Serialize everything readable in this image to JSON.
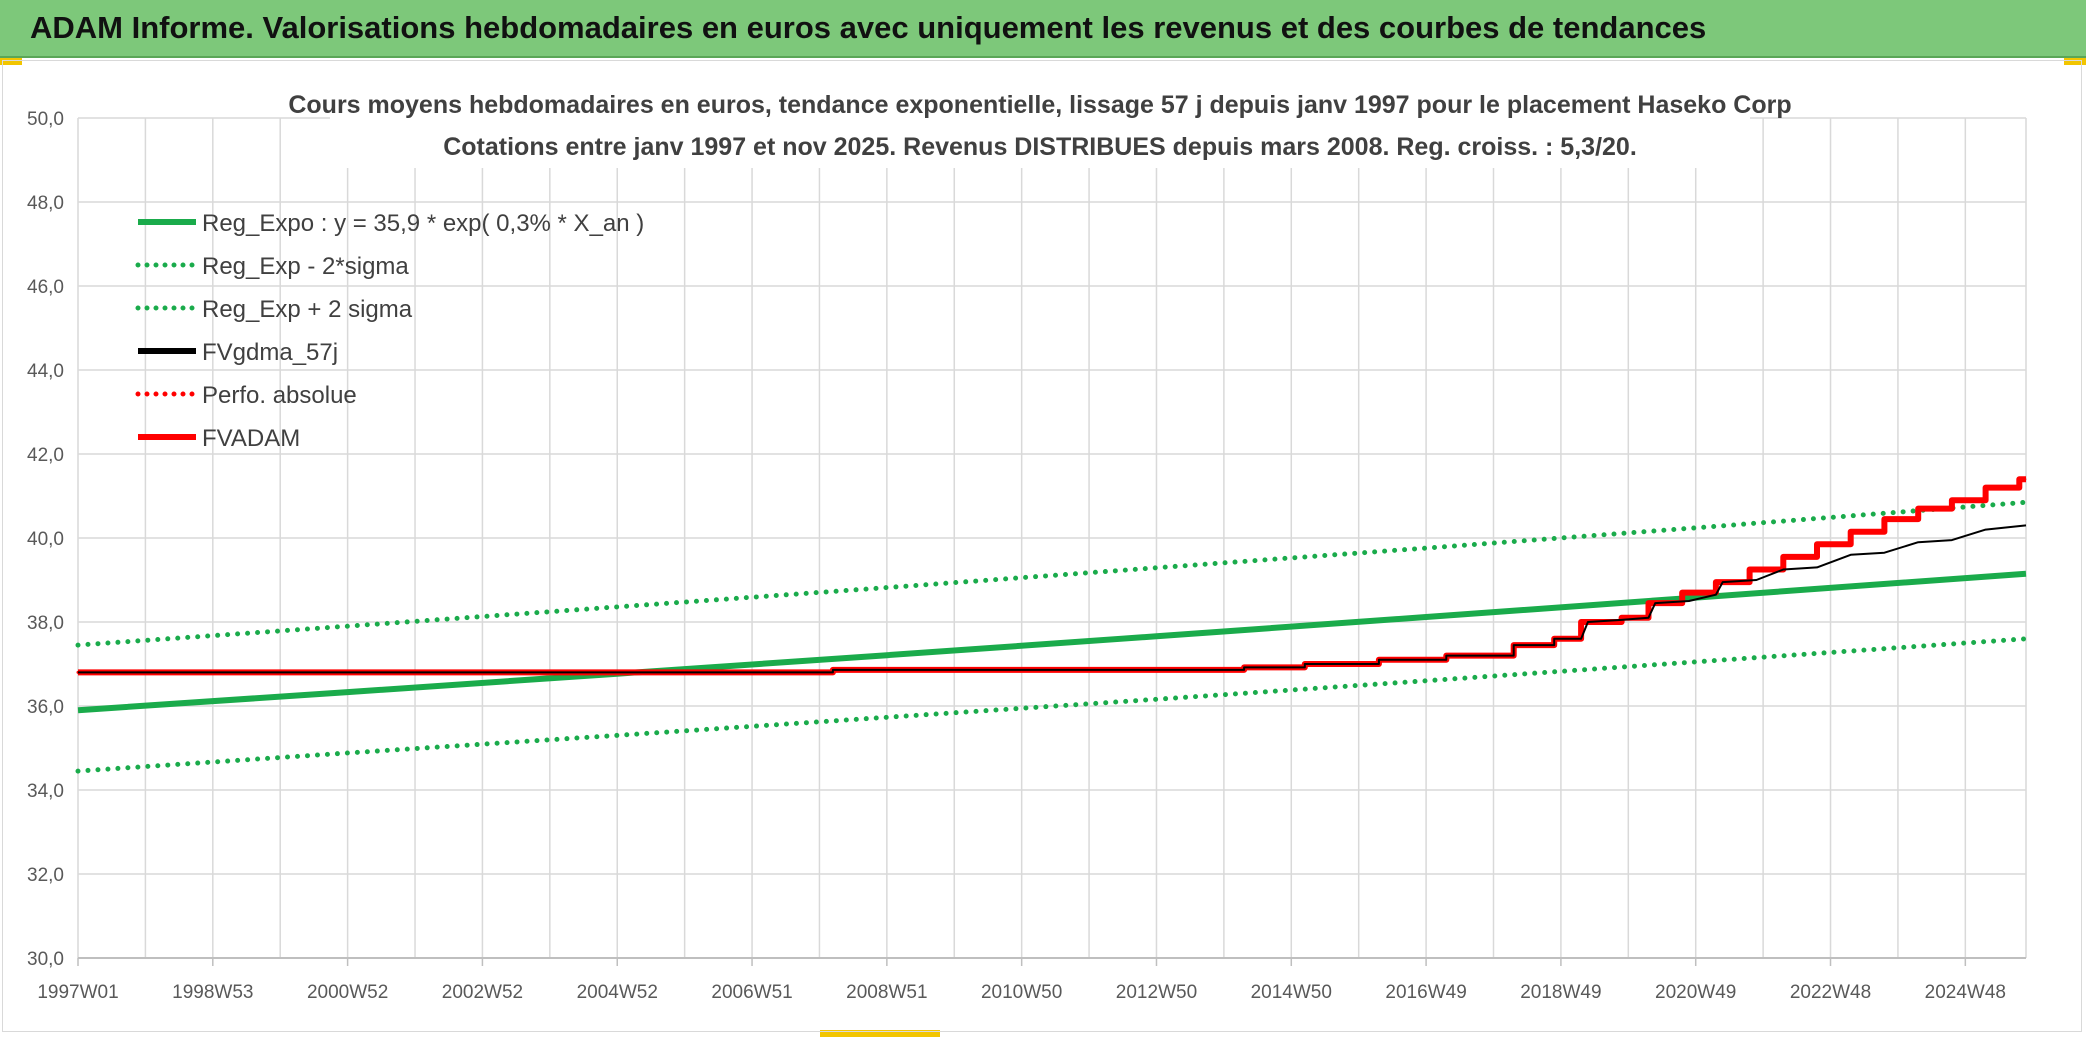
{
  "banner": {
    "title": "ADAM Informe. Valorisations hebdomadaires en euros avec uniquement les revenus et des courbes de tendances"
  },
  "colors": {
    "banner_bg": "#7dc87a",
    "trend_green": "#1aab4b",
    "fvadam_red": "#ff0000",
    "fvgdma_black": "#000000",
    "grid": "#d9d9d9"
  },
  "chart_data": {
    "type": "line",
    "title_line1": "Cours moyens hebdomadaires en euros, tendance exponentielle, lissage 57 j depuis janv 1997 pour le placement Haseko Corp",
    "title_line2": "Cotations entre janv 1997 et nov 2025. Revenus DISTRIBUES depuis mars 2008. Reg. croiss. : 5,3/20.",
    "x_range": [
      1997.0,
      2025.9
    ],
    "x_tick_labels": [
      "1997W01",
      "1998W53",
      "2000W52",
      "2002W52",
      "2004W52",
      "2006W51",
      "2008W51",
      "2010W50",
      "2012W50",
      "2014W50",
      "2016W49",
      "2018W49",
      "2020W49",
      "2022W48",
      "2024W48"
    ],
    "x_tick_years": [
      1997.0,
      1999.0,
      2001.0,
      2003.0,
      2005.0,
      2007.0,
      2009.0,
      2011.0,
      2013.0,
      2015.0,
      2017.0,
      2019.0,
      2021.0,
      2023.0,
      2025.0
    ],
    "ylim": [
      30,
      50
    ],
    "y_ticks": [
      "30,0",
      "32,0",
      "34,0",
      "36,0",
      "38,0",
      "40,0",
      "42,0",
      "44,0",
      "46,0",
      "48,0",
      "50,0"
    ],
    "grid": true,
    "legend_position": "top-left",
    "series": [
      {
        "name": "Reg_Expo : y = 35,9 * exp( 0,3% *  X_an )",
        "color": "#1aab4b",
        "style": "solid",
        "points": [
          [
            1997.0,
            35.9
          ],
          [
            2001.0,
            36.33
          ],
          [
            2005.0,
            36.77
          ],
          [
            2009.0,
            37.21
          ],
          [
            2013.0,
            37.66
          ],
          [
            2017.0,
            38.12
          ],
          [
            2021.0,
            38.58
          ],
          [
            2025.9,
            39.15
          ]
        ]
      },
      {
        "name": "Reg_Exp - 2*sigma",
        "color": "#1aab4b",
        "style": "dotted",
        "points": [
          [
            1997.0,
            34.45
          ],
          [
            2001.0,
            34.88
          ],
          [
            2005.0,
            35.3
          ],
          [
            2009.0,
            35.73
          ],
          [
            2013.0,
            36.16
          ],
          [
            2017.0,
            36.6
          ],
          [
            2021.0,
            37.05
          ],
          [
            2025.9,
            37.6
          ]
        ]
      },
      {
        "name": "Reg_Exp + 2 sigma",
        "color": "#1aab4b",
        "style": "dotted",
        "points": [
          [
            1997.0,
            37.45
          ],
          [
            2001.0,
            37.9
          ],
          [
            2005.0,
            38.36
          ],
          [
            2009.0,
            38.82
          ],
          [
            2013.0,
            39.29
          ],
          [
            2017.0,
            39.76
          ],
          [
            2021.0,
            40.24
          ],
          [
            2025.9,
            40.85
          ]
        ]
      },
      {
        "name": "FVgdma_57j",
        "color": "#000000",
        "style": "solid",
        "points": [
          [
            1997.0,
            36.8
          ],
          [
            2008.2,
            36.8
          ],
          [
            2008.2,
            36.86
          ],
          [
            2014.3,
            36.86
          ],
          [
            2014.3,
            36.92
          ],
          [
            2015.2,
            36.92
          ],
          [
            2015.2,
            37.0
          ],
          [
            2016.3,
            37.0
          ],
          [
            2016.3,
            37.1
          ],
          [
            2017.3,
            37.1
          ],
          [
            2017.3,
            37.2
          ],
          [
            2018.3,
            37.2
          ],
          [
            2018.3,
            37.45
          ],
          [
            2018.9,
            37.45
          ],
          [
            2018.9,
            37.6
          ],
          [
            2019.3,
            37.6
          ],
          [
            2019.4,
            38.0
          ],
          [
            2019.9,
            38.05
          ],
          [
            2020.3,
            38.1
          ],
          [
            2020.4,
            38.45
          ],
          [
            2020.9,
            38.5
          ],
          [
            2021.3,
            38.65
          ],
          [
            2021.4,
            38.95
          ],
          [
            2021.9,
            39.0
          ],
          [
            2022.3,
            39.25
          ],
          [
            2022.8,
            39.3
          ],
          [
            2023.3,
            39.6
          ],
          [
            2023.8,
            39.65
          ],
          [
            2024.3,
            39.9
          ],
          [
            2024.8,
            39.95
          ],
          [
            2025.3,
            40.2
          ],
          [
            2025.9,
            40.3
          ]
        ]
      },
      {
        "name": "Perfo. absolue",
        "color": "#ff0000",
        "style": "dotted",
        "points": [
          [
            1997.0,
            36.8
          ],
          [
            2008.2,
            36.8
          ],
          [
            2008.2,
            36.86
          ],
          [
            2014.3,
            36.86
          ],
          [
            2014.3,
            36.92
          ],
          [
            2015.2,
            36.92
          ],
          [
            2015.2,
            37.0
          ],
          [
            2016.3,
            37.0
          ],
          [
            2016.3,
            37.1
          ],
          [
            2017.3,
            37.1
          ],
          [
            2017.3,
            37.2
          ],
          [
            2018.3,
            37.2
          ],
          [
            2018.3,
            37.45
          ],
          [
            2018.9,
            37.45
          ],
          [
            2018.9,
            37.6
          ],
          [
            2019.3,
            37.6
          ],
          [
            2019.3,
            38.0
          ],
          [
            2019.9,
            38.0
          ],
          [
            2019.9,
            38.1
          ],
          [
            2020.3,
            38.1
          ],
          [
            2020.3,
            38.45
          ],
          [
            2020.8,
            38.45
          ],
          [
            2020.8,
            38.7
          ],
          [
            2021.3,
            38.7
          ],
          [
            2021.3,
            38.95
          ],
          [
            2021.8,
            38.95
          ],
          [
            2021.8,
            39.25
          ],
          [
            2022.3,
            39.25
          ],
          [
            2022.3,
            39.55
          ],
          [
            2022.8,
            39.55
          ],
          [
            2022.8,
            39.85
          ],
          [
            2023.3,
            39.85
          ],
          [
            2023.3,
            40.15
          ],
          [
            2023.8,
            40.15
          ],
          [
            2023.8,
            40.45
          ],
          [
            2024.3,
            40.45
          ],
          [
            2024.3,
            40.7
          ],
          [
            2024.8,
            40.7
          ],
          [
            2024.8,
            40.9
          ],
          [
            2025.3,
            40.9
          ],
          [
            2025.3,
            41.2
          ],
          [
            2025.8,
            41.2
          ],
          [
            2025.8,
            41.4
          ],
          [
            2025.9,
            41.4
          ]
        ]
      },
      {
        "name": "FVADAM",
        "color": "#ff0000",
        "style": "solid",
        "points": [
          [
            1997.0,
            36.8
          ],
          [
            2008.2,
            36.8
          ],
          [
            2008.2,
            36.86
          ],
          [
            2014.3,
            36.86
          ],
          [
            2014.3,
            36.92
          ],
          [
            2015.2,
            36.92
          ],
          [
            2015.2,
            37.0
          ],
          [
            2016.3,
            37.0
          ],
          [
            2016.3,
            37.1
          ],
          [
            2017.3,
            37.1
          ],
          [
            2017.3,
            37.2
          ],
          [
            2018.3,
            37.2
          ],
          [
            2018.3,
            37.45
          ],
          [
            2018.9,
            37.45
          ],
          [
            2018.9,
            37.6
          ],
          [
            2019.3,
            37.6
          ],
          [
            2019.3,
            38.0
          ],
          [
            2019.9,
            38.0
          ],
          [
            2019.9,
            38.1
          ],
          [
            2020.3,
            38.1
          ],
          [
            2020.3,
            38.45
          ],
          [
            2020.8,
            38.45
          ],
          [
            2020.8,
            38.7
          ],
          [
            2021.3,
            38.7
          ],
          [
            2021.3,
            38.95
          ],
          [
            2021.8,
            38.95
          ],
          [
            2021.8,
            39.25
          ],
          [
            2022.3,
            39.25
          ],
          [
            2022.3,
            39.55
          ],
          [
            2022.8,
            39.55
          ],
          [
            2022.8,
            39.85
          ],
          [
            2023.3,
            39.85
          ],
          [
            2023.3,
            40.15
          ],
          [
            2023.8,
            40.15
          ],
          [
            2023.8,
            40.45
          ],
          [
            2024.3,
            40.45
          ],
          [
            2024.3,
            40.7
          ],
          [
            2024.8,
            40.7
          ],
          [
            2024.8,
            40.9
          ],
          [
            2025.3,
            40.9
          ],
          [
            2025.3,
            41.2
          ],
          [
            2025.8,
            41.2
          ],
          [
            2025.8,
            41.4
          ],
          [
            2025.9,
            41.4
          ]
        ]
      }
    ]
  }
}
